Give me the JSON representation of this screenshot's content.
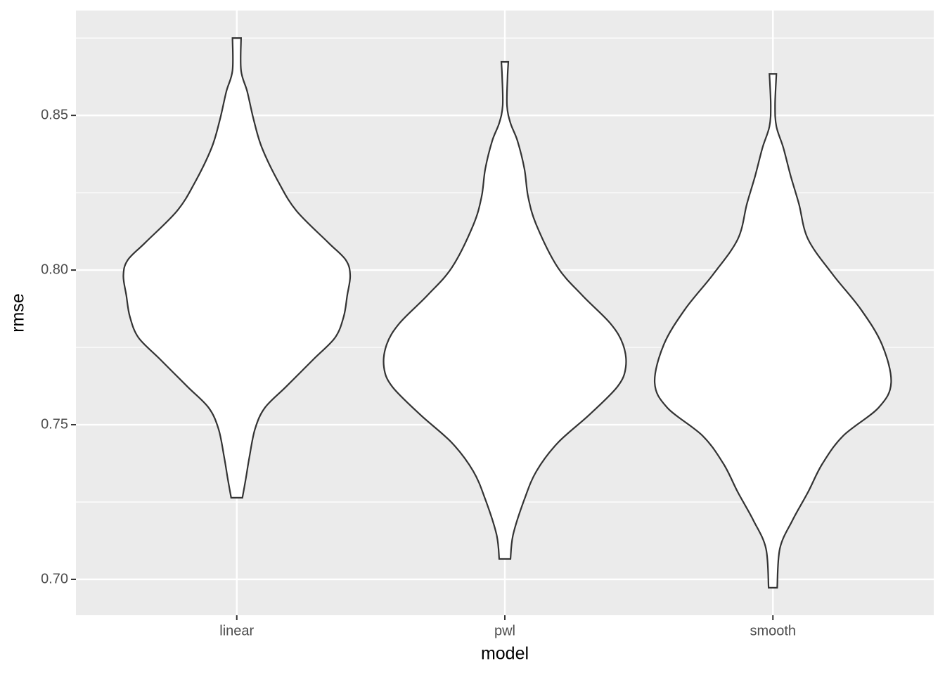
{
  "chart_data": {
    "type": "violin",
    "x_label": "model",
    "y_label": "rmse",
    "categories": [
      "linear",
      "pwl",
      "smooth"
    ],
    "violins": [
      {
        "y": [
          0.875,
          0.8645,
          0.8577,
          0.8486,
          0.8395,
          0.8282,
          0.8191,
          0.8089,
          0.8032,
          0.7982,
          0.7918,
          0.785,
          0.7782,
          0.7714,
          0.7623,
          0.7555,
          0.7486,
          0.7395,
          0.7327,
          0.7264
        ],
        "half_width": [
          0.016,
          0.016,
          0.039,
          0.063,
          0.094,
          0.157,
          0.223,
          0.341,
          0.407,
          0.423,
          0.412,
          0.399,
          0.367,
          0.289,
          0.184,
          0.105,
          0.068,
          0.047,
          0.034,
          0.021
        ]
      },
      {
        "y": [
          0.8673,
          0.8623,
          0.8532,
          0.8475,
          0.8418,
          0.8327,
          0.8236,
          0.8145,
          0.8009,
          0.7918,
          0.7827,
          0.7759,
          0.7686,
          0.7623,
          0.7532,
          0.7441,
          0.735,
          0.7259,
          0.7145,
          0.7066
        ],
        "half_width": [
          0.013,
          0.01,
          0.008,
          0.021,
          0.047,
          0.073,
          0.087,
          0.118,
          0.197,
          0.289,
          0.394,
          0.441,
          0.451,
          0.42,
          0.315,
          0.197,
          0.118,
          0.073,
          0.031,
          0.021
        ]
      },
      {
        "y": [
          0.8634,
          0.8532,
          0.8464,
          0.8395,
          0.8305,
          0.8214,
          0.81,
          0.7986,
          0.7873,
          0.7759,
          0.7636,
          0.7555,
          0.7464,
          0.7373,
          0.7282,
          0.7191,
          0.71,
          0.6973
        ],
        "half_width": [
          0.013,
          0.008,
          0.013,
          0.039,
          0.066,
          0.097,
          0.131,
          0.223,
          0.328,
          0.407,
          0.441,
          0.394,
          0.262,
          0.184,
          0.131,
          0.073,
          0.026,
          0.016
        ]
      }
    ],
    "fill": "#ffffff",
    "outline": "#333333",
    "background": "#ebebeb",
    "grid": true,
    "ylim": [
      0.6884,
      0.8839
    ],
    "yticks": [
      {
        "value": 0.7,
        "label": "0.70"
      },
      {
        "value": 0.75,
        "label": "0.75"
      },
      {
        "value": 0.8,
        "label": "0.80"
      },
      {
        "value": 0.85,
        "label": "0.85"
      }
    ],
    "minor_yticks": [
      0.725,
      0.775,
      0.825,
      0.875
    ]
  }
}
